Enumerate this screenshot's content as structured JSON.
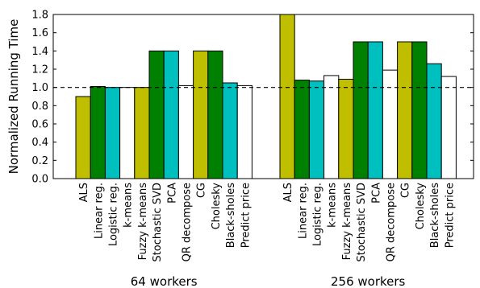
{
  "chart_data": {
    "type": "bar",
    "title": "",
    "ylabel": "Normalized Running Time",
    "xlabel": "",
    "ylim": [
      0.0,
      1.8
    ],
    "yticks": [
      "0.0",
      "0.2",
      "0.4",
      "0.6",
      "0.8",
      "1.0",
      "1.2",
      "1.4",
      "1.6",
      "1.8"
    ],
    "reference_line": {
      "y": 1.0,
      "style": "dashed"
    },
    "grid": false,
    "legend": "none",
    "categories": [
      "ALS",
      "Linear reg.",
      "Logistic reg.",
      "k-means",
      "Fuzzy k-means",
      "Stochastic SVD",
      "PCA",
      "QR decompose",
      "CG",
      "Cholesky",
      "Black-sholes",
      "Predict price"
    ],
    "bar_colors": [
      "#bfbf00",
      "#008000",
      "#00bfbf",
      "#ffffff",
      "#bfbf00",
      "#008000",
      "#00bfbf",
      "#ffffff",
      "#bfbf00",
      "#008000",
      "#00bfbf",
      "#ffffff"
    ],
    "groups": [
      {
        "name": "64 workers",
        "values": [
          0.9,
          1.01,
          1.0,
          1.0,
          1.0,
          1.4,
          1.4,
          1.02,
          1.4,
          1.4,
          1.05,
          1.02
        ]
      },
      {
        "name": "256 workers",
        "values": [
          1.8,
          1.08,
          1.07,
          1.13,
          1.09,
          1.5,
          1.5,
          1.19,
          1.5,
          1.5,
          1.26,
          1.12
        ]
      }
    ]
  }
}
